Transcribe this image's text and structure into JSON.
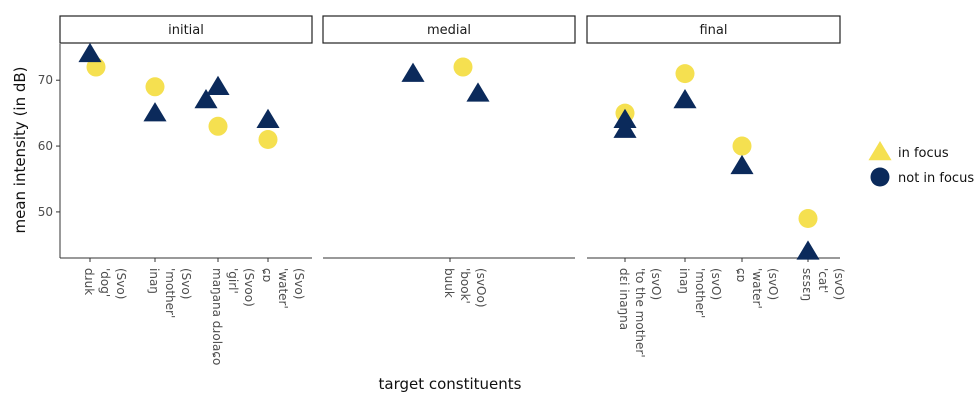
{
  "chart_data": {
    "type": "scatter",
    "title": "",
    "xlabel": "target constituents",
    "ylabel": "mean intensity (in dB)",
    "ylim": [
      43,
      75.5
    ],
    "yticks": [
      50,
      60,
      70
    ],
    "grid": false,
    "legend_position": "right",
    "colors": {
      "in_focus": "#f5e050",
      "not_in_focus": "#0b2a5b"
    },
    "legend": [
      {
        "label": "in focus",
        "shape": "triangle",
        "color": "#f5e050"
      },
      {
        "label": "not in focus",
        "shape": "circle",
        "color": "#0b2a5b"
      }
    ],
    "panels": [
      {
        "label": "initial",
        "categories": [
          {
            "lines": [
              "dɹuk",
              "'dog'",
              "(Svo)"
            ],
            "in_focus": 74,
            "not_in_focus": 72
          },
          {
            "lines": [
              "inaŋ",
              "'mother'",
              "(Svo)"
            ],
            "in_focus": 65,
            "not_in_focus": 69
          },
          {
            "lines": [
              "maŋana dɹolaɕo",
              "'girl'",
              "(Svoo)"
            ],
            "in_focus": 69,
            "not_in_focus": 63,
            "extra_points": [
              {
                "group": "in_focus",
                "value": 67
              }
            ]
          },
          {
            "lines": [
              "ɕɒ",
              "'water'",
              "(Svo)"
            ],
            "in_focus": 64,
            "not_in_focus": 61
          }
        ]
      },
      {
        "label": "medial",
        "categories": [
          {
            "lines": [
              "buuk",
              "'book'",
              "(svOo)"
            ],
            "in_focus": 68,
            "not_in_focus": 72,
            "extra_points": [
              {
                "group": "in_focus",
                "value": 71
              }
            ]
          }
        ]
      },
      {
        "label": "final",
        "categories": [
          {
            "lines": [
              "dɛi inaŋna",
              "'to the mother'",
              "(svO)"
            ],
            "in_focus": 62.5,
            "not_in_focus": 65,
            "extra_points": [
              {
                "group": "in_focus",
                "value": 64
              }
            ]
          },
          {
            "lines": [
              "inaŋ",
              "'mother'",
              "(svO)"
            ],
            "in_focus": 67,
            "not_in_focus": 71
          },
          {
            "lines": [
              "ɕɒ",
              "'water'",
              "(svO)"
            ],
            "in_focus": 57,
            "not_in_focus": 60
          },
          {
            "lines": [
              "sɛsɛŋ",
              "'cat'",
              "(svO)"
            ],
            "in_focus": 44,
            "not_in_focus": 49
          }
        ]
      }
    ]
  }
}
